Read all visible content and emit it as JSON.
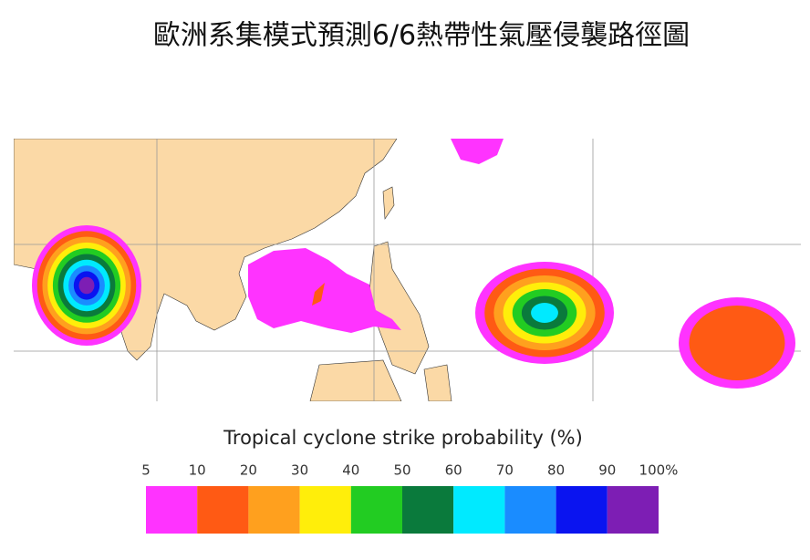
{
  "title": "歐洲系集模式預測6/6熱帶性氣壓侵襲路徑圖",
  "legend": {
    "title": "Tropical cyclone strike probability (%)",
    "labels": [
      "5",
      "10",
      "20",
      "30",
      "40",
      "50",
      "60",
      "70",
      "80",
      "90",
      "100%"
    ],
    "colors": [
      "#ff33ff",
      "#ff5a14",
      "#ffa01e",
      "#ffee0a",
      "#22cc22",
      "#0a7a3c",
      "#00eaff",
      "#1a8cff",
      "#0a14f0",
      "#7d1eb4"
    ]
  }
}
